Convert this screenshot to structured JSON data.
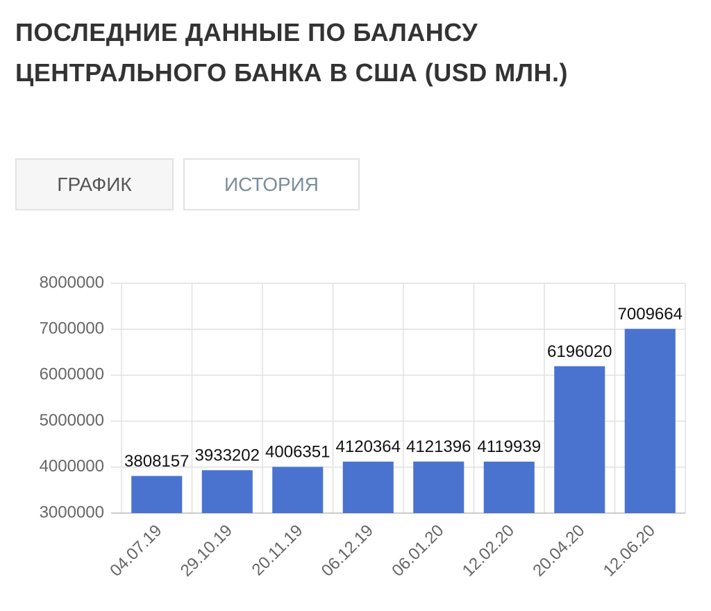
{
  "header": {
    "title": "ПОСЛЕДНИЕ ДАННЫЕ ПО БАЛАНСУ ЦЕНТРАЛЬНОГО БАНКА В США (USD МЛН.)"
  },
  "tabs": [
    "ГРАФИК",
    "ИСТОРИЯ"
  ],
  "chart_data": {
    "type": "bar",
    "categories": [
      "04.07.19",
      "29.10.19",
      "20.11.19",
      "06.12.19",
      "06.01.20",
      "12.02.20",
      "20.04.20",
      "12.06.20"
    ],
    "values": [
      3808157,
      3933202,
      4006351,
      4120364,
      4121396,
      4119939,
      6196020,
      7009664
    ],
    "color": "#4a73d0",
    "ylim": [
      3000000,
      8000000
    ],
    "yticks": [
      3000000,
      4000000,
      5000000,
      6000000,
      7000000,
      8000000
    ],
    "grid": true
  }
}
